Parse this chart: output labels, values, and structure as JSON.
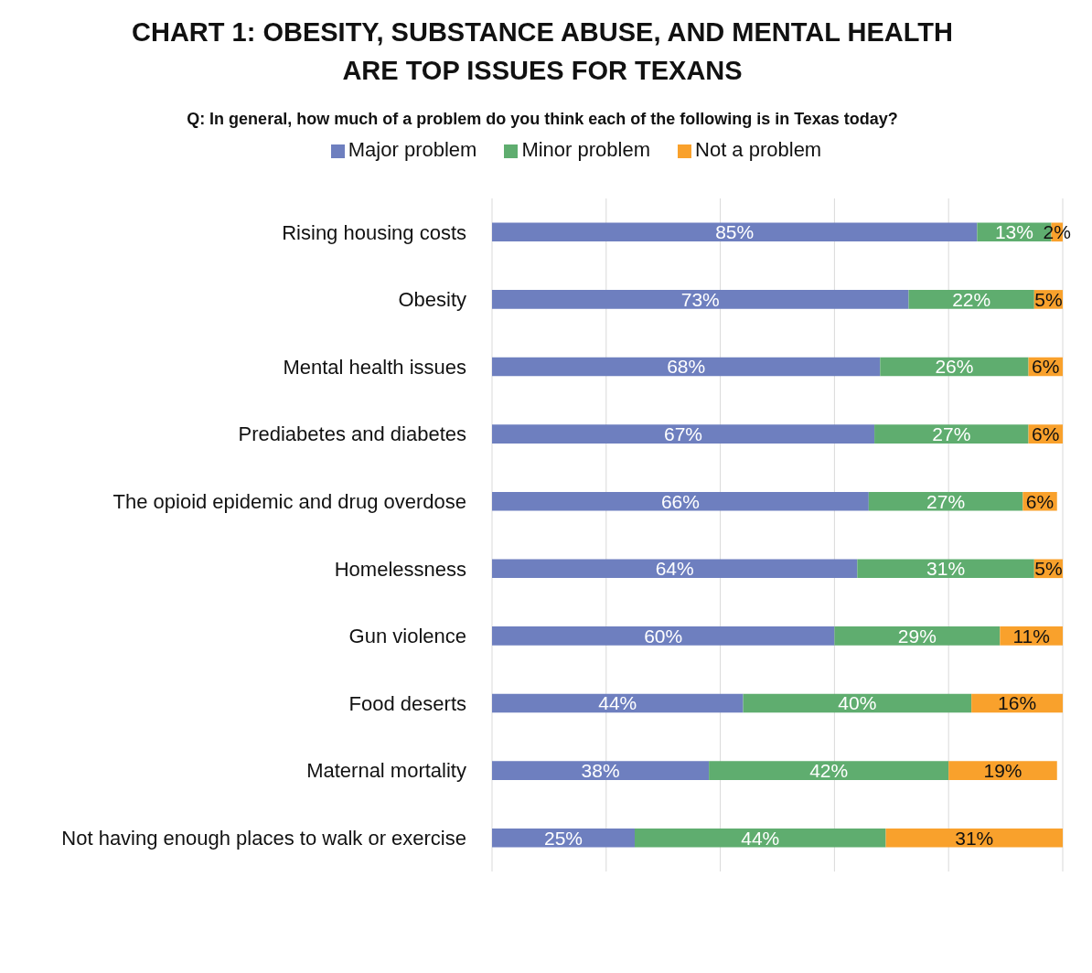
{
  "chart_data": {
    "type": "bar",
    "orientation": "horizontal",
    "stacked": true,
    "title": "CHART 1: OBESITY, SUBSTANCE ABUSE, AND MENTAL HEALTH ARE TOP ISSUES FOR TEXANS",
    "subtitle": "Q: In general, how much of a problem do you think each of the following is in Texas today?",
    "categories": [
      "Rising housing costs",
      "Obesity",
      "Mental health issues",
      "Prediabetes and diabetes",
      "The opioid epidemic and drug overdose",
      "Homelessness",
      "Gun violence",
      "Food deserts",
      "Maternal mortality",
      "Not having enough places to walk or exercise"
    ],
    "series": [
      {
        "name": "Major problem",
        "color": "#6e7fbf",
        "values": [
          85,
          73,
          68,
          67,
          66,
          64,
          60,
          44,
          38,
          25
        ],
        "value_labels": [
          "85%",
          "73%",
          "68%",
          "67%",
          "66%",
          "64%",
          "60%",
          "44%",
          "38%",
          "25%"
        ]
      },
      {
        "name": "Minor problem",
        "color": "#5fad6f",
        "values": [
          13,
          22,
          26,
          27,
          27,
          31,
          29,
          40,
          42,
          44
        ],
        "value_labels": [
          "13%",
          "22%",
          "26%",
          "27%",
          "27%",
          "31%",
          "29%",
          "40%",
          "42%",
          "44%"
        ]
      },
      {
        "name": "Not a problem",
        "color": "#f9a12c",
        "values": [
          2,
          5,
          6,
          6,
          6,
          5,
          11,
          16,
          19,
          31
        ],
        "value_labels": [
          "2%",
          "5%",
          "6%",
          "6%",
          "6%",
          "5%",
          "11%",
          "16%",
          "19%",
          "31%"
        ]
      }
    ],
    "xlim": [
      0,
      100
    ],
    "grid": "x",
    "legend": "top",
    "tick_labels": "y"
  }
}
